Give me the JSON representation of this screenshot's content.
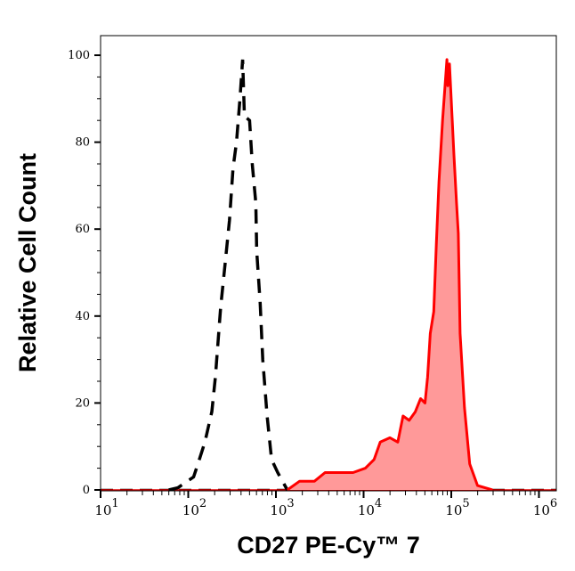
{
  "chart_data": {
    "type": "area",
    "title": "",
    "xlabel": "CD27 PE-Cy™ 7",
    "ylabel": "Relative Cell Count",
    "x_scale": "log",
    "xlim": [
      10,
      1550000
    ],
    "ylim": [
      0,
      104.5
    ],
    "x_ticks": [
      {
        "base": "10",
        "exp": "1"
      },
      {
        "base": "10",
        "exp": "2"
      },
      {
        "base": "10",
        "exp": "3"
      },
      {
        "base": "10",
        "exp": "4"
      },
      {
        "base": "10",
        "exp": "5"
      },
      {
        "base": "10",
        "exp": "6"
      }
    ],
    "y_ticks": [
      "0",
      "20",
      "40",
      "60",
      "80",
      "100"
    ],
    "grid": false,
    "series": [
      {
        "style": "dashed line, no fill",
        "color": "#000000",
        "x": [
          60,
          76,
          115,
          129,
          155,
          186,
          204,
          234,
          263,
          295,
          324,
          355,
          389,
          417,
          437,
          501,
          537,
          589,
          603,
          661,
          708,
          794,
          891,
          1047,
          1349
        ],
        "y": [
          0,
          0.5,
          3,
          6,
          11,
          18,
          26,
          42,
          52,
          62,
          74,
          80,
          90,
          99,
          86,
          85,
          75,
          66,
          55,
          43,
          30,
          17,
          7,
          4,
          0
        ]
      },
      {
        "style": "solid line with fill",
        "color": "#ff0000",
        "fill": "#ff9999",
        "x": [
          1349,
          1862,
          2754,
          3631,
          5129,
          7586,
          10471,
          13183,
          15488,
          19953,
          24547,
          28184,
          33113,
          38905,
          44668,
          50119,
          53703,
          57544,
          63096,
          67608,
          72444,
          79433,
          89125,
          91201,
          95499,
          107152,
          114815,
          120226,
          125893,
          141254,
          162181,
          199526,
          295121
        ],
        "y": [
          0,
          2,
          2,
          4,
          4,
          4,
          5,
          7,
          11,
          12,
          11,
          17,
          16,
          18,
          21,
          20,
          26,
          36,
          41,
          57,
          71,
          85,
          99,
          93,
          98,
          77,
          66,
          59,
          36,
          19,
          6,
          1,
          0
        ]
      }
    ]
  }
}
